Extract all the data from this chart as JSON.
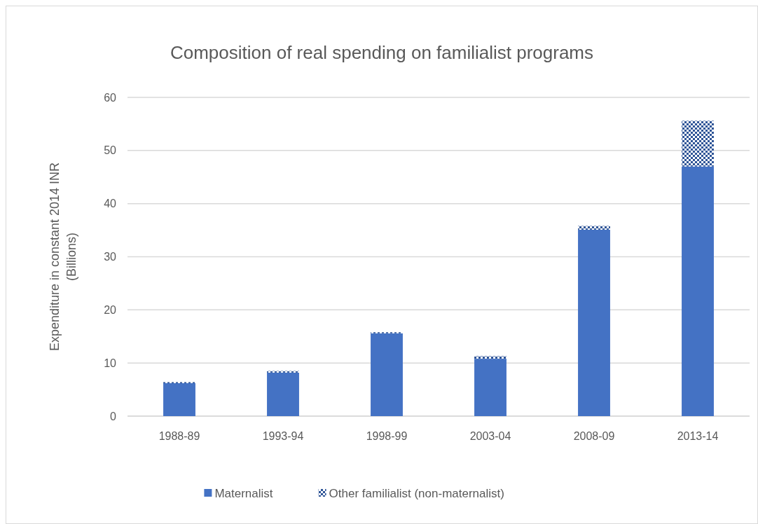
{
  "chart_data": {
    "type": "bar",
    "title": "Composition of real spending on familialist programs",
    "ylabel": "Expenditure in constant 2014 INR (Billions)",
    "categories": [
      "1988-89",
      "1993-94",
      "1998-99",
      "2003-04",
      "2008-09",
      "2013-14"
    ],
    "stacked": true,
    "series": [
      {
        "name": "Maternalist",
        "color": "#4472c4",
        "values": [
          6.2,
          8.2,
          15.6,
          10.8,
          35.1,
          47.0
        ]
      },
      {
        "name": "Other familialist (non-maternalist)",
        "color": "#2f5597",
        "values": [
          0.2,
          0.3,
          0.2,
          0.5,
          0.7,
          8.6
        ]
      }
    ],
    "ylim": [
      0,
      60
    ],
    "yticks": [
      0,
      10,
      20,
      30,
      40,
      50,
      60
    ],
    "grid": "y",
    "legend": "bottom"
  }
}
